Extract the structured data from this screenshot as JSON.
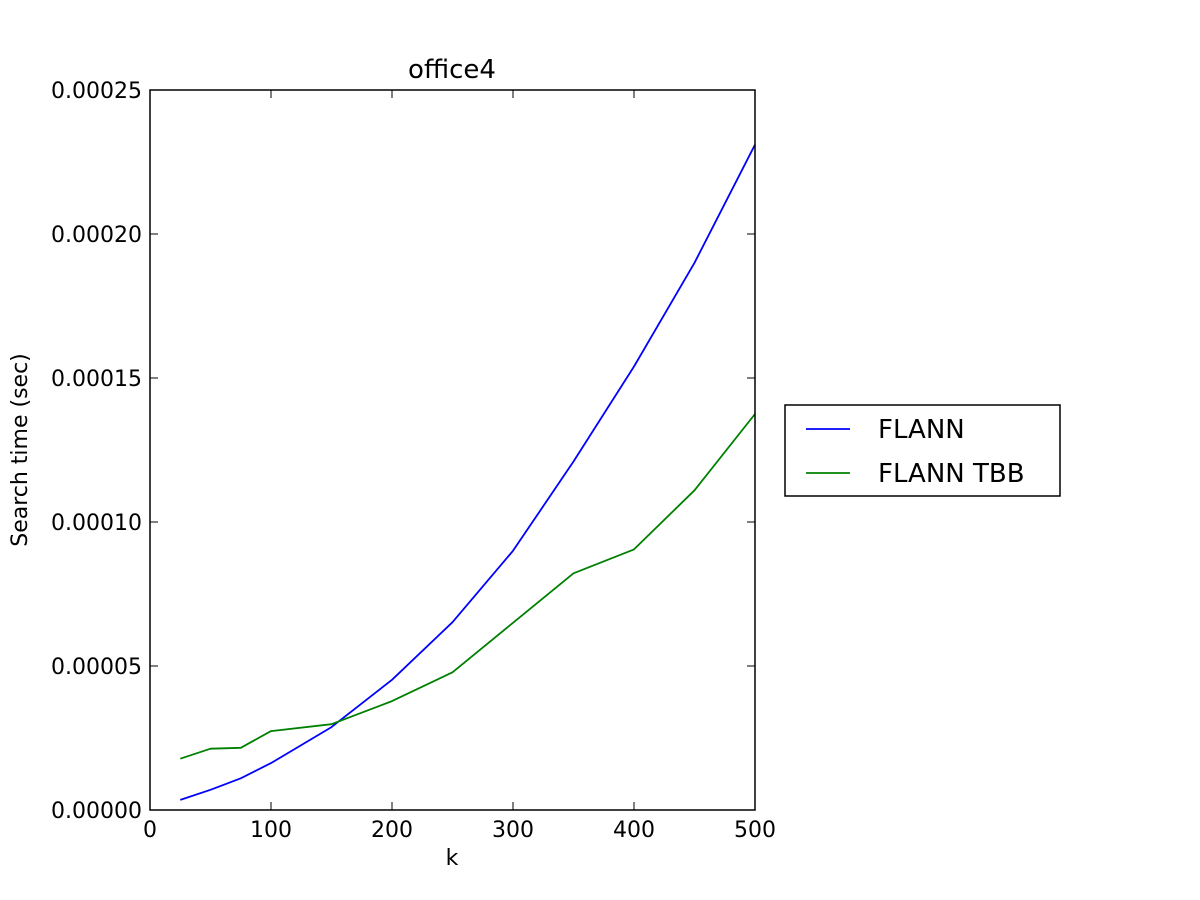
{
  "chart_data": {
    "type": "line",
    "title": "office4",
    "xlabel": "k",
    "ylabel": "Search time (sec)",
    "xlim": [
      0,
      500
    ],
    "ylim": [
      0,
      0.00025
    ],
    "xticks": [
      0,
      100,
      200,
      300,
      400,
      500
    ],
    "xtick_labels": [
      "0",
      "100",
      "200",
      "300",
      "400",
      "500"
    ],
    "yticks": [
      0,
      5e-05,
      0.0001,
      0.00015,
      0.0002,
      0.00025
    ],
    "ytick_labels": [
      "0.00000",
      "0.00005",
      "0.00010",
      "0.00015",
      "0.00020",
      "0.00025"
    ],
    "grid": false,
    "legend_position": "outside-right",
    "series": [
      {
        "name": "FLANN",
        "color": "#0000ff",
        "x": [
          25,
          50,
          75,
          100,
          150,
          200,
          250,
          300,
          350,
          400,
          450,
          500
        ],
        "y": [
          3.5e-06,
          7e-06,
          1.1e-05,
          1.63e-05,
          2.88e-05,
          4.52e-05,
          6.52e-05,
          9e-05,
          0.000121,
          0.000154,
          0.00019,
          0.000231
        ]
      },
      {
        "name": "FLANN TBB",
        "color": "#008000",
        "x": [
          25,
          50,
          75,
          100,
          150,
          200,
          250,
          300,
          350,
          400,
          450,
          500
        ],
        "y": [
          1.78e-05,
          2.13e-05,
          2.16e-05,
          2.74e-05,
          2.98e-05,
          3.78e-05,
          4.78e-05,
          6.5e-05,
          8.22e-05,
          9.05e-05,
          0.000111,
          0.0001375
        ]
      }
    ]
  }
}
